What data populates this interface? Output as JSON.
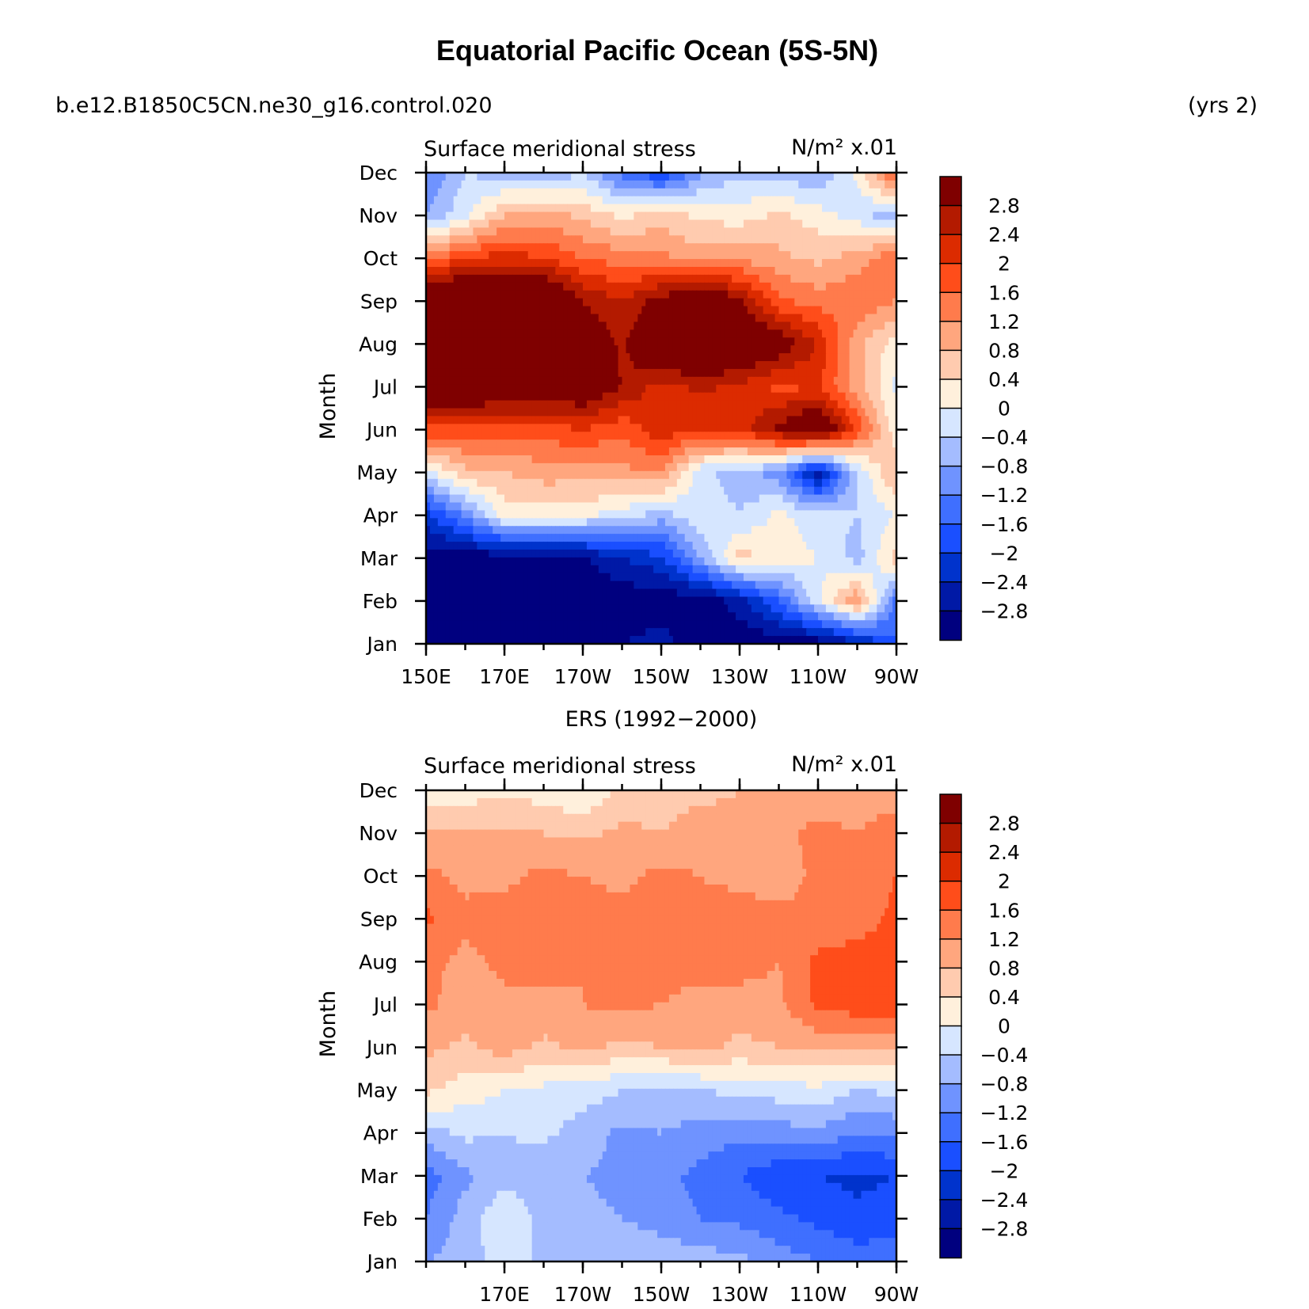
{
  "figure": {
    "title": "Equatorial Pacific Ocean (5S-5N)",
    "case_label": "b.e12.B1850C5CN.ne30_g16.control.020",
    "years_label": "(yrs  2)"
  },
  "colors": {
    "levels": [
      "#00007f",
      "#0019a6",
      "#0033cc",
      "#1a4fff",
      "#3f6fff",
      "#6f93ff",
      "#a4bcff",
      "#d6e6ff",
      "#fff0dc",
      "#ffcbaf",
      "#ffa67e",
      "#ff7b4c",
      "#ff4d1a",
      "#dc2b00",
      "#b31a00",
      "#7f0000"
    ]
  },
  "chart_data": [
    {
      "type": "heatmap",
      "name": "model",
      "panel_title": "",
      "title": "Surface  meridional  stress",
      "units": "N/m²  x.01",
      "ylabel": "Month",
      "x_ticks": [
        "150E",
        "170E",
        "170W",
        "150W",
        "130W",
        "110W",
        "90W"
      ],
      "x_tick_values": [
        150,
        170,
        190,
        210,
        230,
        250,
        270
      ],
      "y_ticks": [
        "Jan",
        "Feb",
        "Mar",
        "Apr",
        "May",
        "Jun",
        "Jul",
        "Aug",
        "Sep",
        "Oct",
        "Nov",
        "Dec"
      ],
      "xlim": [
        150,
        270
      ],
      "colorbar_labels": [
        "2.8",
        "2.4",
        "2",
        "1.6",
        "1.2",
        "0.8",
        "0.4",
        "0",
        "−0.4",
        "−0.8",
        "−1.2",
        "−1.6",
        "−2",
        "−2.4",
        "−2.8"
      ],
      "lon": [
        150,
        160,
        170,
        180,
        190,
        200,
        210,
        220,
        230,
        240,
        250,
        260,
        270
      ],
      "values": [
        [
          -3.5,
          -3.5,
          -3.5,
          -3.5,
          -3.5,
          -3.2,
          -3.0,
          -3.5,
          -3.5,
          -3.5,
          -3.5,
          -3.0,
          -2.0
        ],
        [
          -3.5,
          -3.5,
          -3.5,
          -3.5,
          -3.5,
          -3.5,
          -3.5,
          -3.5,
          -3.0,
          -2.0,
          -0.5,
          0.8,
          -1.8
        ],
        [
          -3.5,
          -3.5,
          -3.5,
          -3.5,
          -3.3,
          -2.8,
          -2.5,
          -1.2,
          0.2,
          -0.2,
          -0.4,
          -1.0,
          0.2
        ],
        [
          -2.5,
          -1.5,
          -0.2,
          -0.2,
          -0.3,
          -0.6,
          -1.0,
          -0.5,
          -0.8,
          -0.3,
          -0.6,
          -0.8,
          -0.4
        ],
        [
          -0.6,
          0.3,
          0.4,
          0.6,
          0.6,
          0.7,
          0.8,
          -0.7,
          -1.0,
          -1.4,
          -3.2,
          -0.8,
          0.5
        ],
        [
          1.5,
          1.4,
          1.4,
          1.4,
          1.6,
          1.3,
          1.9,
          1.6,
          1.8,
          2.5,
          3.3,
          1.5,
          -0.3
        ],
        [
          3.4,
          3.2,
          3.0,
          2.9,
          3.0,
          2.4,
          1.8,
          2.1,
          1.9,
          1.5,
          1.6,
          0.6,
          -0.5
        ],
        [
          3.5,
          3.5,
          3.5,
          3.5,
          2.9,
          2.3,
          3.2,
          3.4,
          3.2,
          2.8,
          2.0,
          0.5,
          -0.2
        ],
        [
          3.5,
          3.5,
          3.5,
          3.5,
          2.4,
          2.0,
          2.6,
          3.2,
          2.5,
          1.3,
          1.0,
          1.2,
          0.8
        ],
        [
          1.0,
          1.6,
          1.8,
          1.6,
          1.2,
          1.0,
          0.9,
          0.6,
          0.7,
          0.5,
          0.3,
          0.6,
          1.2
        ],
        [
          -1.2,
          -0.5,
          0.4,
          0.6,
          0.3,
          -0.1,
          0.2,
          -0.1,
          -0.2,
          0.1,
          -0.2,
          -0.6,
          -1.2
        ],
        [
          -1.6,
          -0.8,
          -1.0,
          -1.2,
          -0.8,
          -1.8,
          -2.4,
          -1.3,
          -0.9,
          -1.0,
          -1.2,
          -0.3,
          1.5
        ]
      ]
    },
    {
      "type": "heatmap",
      "name": "ers",
      "panel_title": "ERS (1992−2000)",
      "title": "Surface  meridional  stress",
      "units": "N/m²  x.01",
      "ylabel": "Month",
      "x_ticks": [
        "170E",
        "170W",
        "150W",
        "130W",
        "110W",
        "90W"
      ],
      "x_tick_values": [
        170,
        190,
        210,
        230,
        250,
        270
      ],
      "y_ticks": [
        "Jan",
        "Feb",
        "Mar",
        "Apr",
        "May",
        "Jun",
        "Jul",
        "Aug",
        "Sep",
        "Oct",
        "Nov",
        "Dec"
      ],
      "xlim": [
        150,
        270
      ],
      "colorbar_labels": [
        "2.8",
        "2.4",
        "2",
        "1.6",
        "1.2",
        "0.8",
        "0.4",
        "0",
        "−0.4",
        "−0.8",
        "−1.2",
        "−1.6",
        "−2",
        "−2.4",
        "−2.8"
      ],
      "lon": [
        150,
        160,
        170,
        180,
        190,
        200,
        210,
        220,
        230,
        240,
        250,
        260,
        270
      ],
      "values": [
        [
          -1.2,
          -1.0,
          -0.6,
          -0.9,
          -0.8,
          -0.8,
          -0.9,
          -1.0,
          -1.1,
          -1.4,
          -1.6,
          -1.8,
          -1.7
        ],
        [
          -1.6,
          -1.0,
          -0.5,
          -0.9,
          -1.1,
          -1.2,
          -1.4,
          -1.6,
          -1.7,
          -1.9,
          -2.1,
          -2.3,
          -2.2
        ],
        [
          -1.8,
          -1.3,
          -0.9,
          -1.1,
          -1.2,
          -1.3,
          -1.5,
          -1.7,
          -2.0,
          -2.3,
          -2.4,
          -2.5,
          -2.4
        ],
        [
          -1.0,
          -0.7,
          -0.8,
          -0.7,
          -1.0,
          -1.3,
          -1.2,
          -1.4,
          -1.5,
          -1.4,
          -1.3,
          -1.6,
          -1.5
        ],
        [
          0.1,
          -0.2,
          -0.4,
          -0.5,
          -0.6,
          -0.8,
          -0.9,
          -0.8,
          -0.7,
          -0.6,
          -0.5,
          -0.8,
          -0.7
        ],
        [
          0.5,
          0.3,
          0.6,
          0.3,
          0.5,
          0.3,
          0.4,
          0.5,
          0.3,
          0.4,
          0.5,
          0.6,
          0.5
        ],
        [
          0.9,
          0.6,
          0.7,
          0.7,
          0.8,
          0.9,
          0.8,
          0.7,
          0.6,
          0.7,
          1.3,
          1.4,
          1.5
        ],
        [
          0.9,
          0.7,
          0.9,
          1.0,
          0.8,
          0.9,
          0.9,
          0.9,
          1.0,
          0.8,
          1.3,
          1.4,
          1.5
        ],
        [
          1.3,
          0.9,
          1.0,
          0.8,
          1.0,
          0.9,
          1.1,
          0.9,
          1.0,
          0.9,
          0.9,
          1.0,
          1.3
        ],
        [
          0.9,
          0.7,
          0.7,
          0.9,
          0.8,
          0.7,
          0.9,
          0.8,
          0.7,
          0.6,
          0.9,
          1.0,
          1.2
        ],
        [
          0.5,
          0.4,
          0.5,
          0.4,
          0.3,
          0.5,
          0.4,
          0.6,
          0.5,
          0.7,
          0.9,
          0.8,
          1.1
        ],
        [
          -0.3,
          -0.2,
          -0.1,
          -0.2,
          -0.4,
          0.1,
          0.2,
          0.3,
          0.4,
          0.5,
          0.6,
          0.6,
          0.5
        ]
      ]
    }
  ]
}
